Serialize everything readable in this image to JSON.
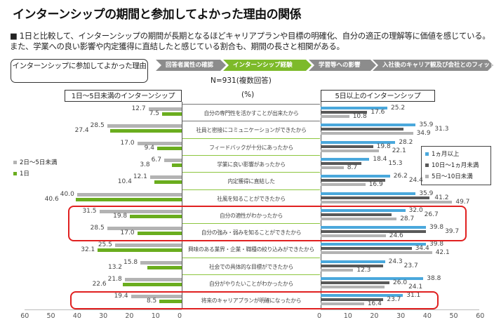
{
  "title": "インターンシップの期間と参加してよかった理由の関係",
  "description": "■ 1日と比較して、インターンシップの期間が長期となるほどキャリアプランや目標の明確化、自分の適正の理解等に価値を感じている。また、学業への良い影響や内定獲得に直結したと感じている割合も、期間の長さと相関がある。",
  "flow_box": "インターンシップに参加してよかった理由",
  "steps": [
    {
      "label": "回答者属性の確認",
      "color": "#8c8c8c"
    },
    {
      "label": "インターンシップ経験",
      "color": "#7dba2a"
    },
    {
      "label": "学習等への影響",
      "color": "#8c8c8c"
    },
    {
      "label": "入社後のキャリア観及び会社とのフィット",
      "color": "#8c8c8c"
    }
  ],
  "sample_note": "N=931(複数回答)",
  "unit": "(%)",
  "colors": {
    "gray_light": "#b3b3b3",
    "green": "#6aad1e",
    "blue": "#4aa8dc",
    "dark_gray": "#595959",
    "highlight": "#e02020",
    "row_line": "#8dc63f"
  },
  "chart_data": [
    {
      "type": "bar",
      "orientation": "horizontal-reversed",
      "title": "1日～5日未満のインターンシップ",
      "categories": [
        "自分の専門性を活かすことが出来たから",
        "社員と密接にコミュニケーションができたから",
        "フィードバックが十分にあったから",
        "学業に良い影響があったから",
        "内定獲得に直結した",
        "社風を知ることができたから",
        "自分の適性がわかったから",
        "自分の強み・弱みを知ることができたから",
        "興味のある業界・企業・職種の絞り込みができたから",
        "社会での具体的な目標ができたから",
        "自分がやりたいことがわかったから",
        "将来のキャリアプランが明確になったから"
      ],
      "series": [
        {
          "name": "2日～5日未満",
          "values": [
            12.7,
            28.5,
            17.0,
            6.7,
            12.1,
            40.0,
            31.5,
            28.5,
            25.5,
            15.8,
            21.8,
            19.4
          ]
        },
        {
          "name": "1日",
          "values": [
            7.5,
            27.4,
            9.4,
            3.8,
            10.4,
            40.6,
            19.8,
            17.0,
            32.1,
            13.2,
            22.6,
            8.5
          ]
        }
      ],
      "xlim": [
        60,
        0
      ],
      "ticks": [
        "60",
        "50",
        "40",
        "30",
        "20",
        "10",
        "0"
      ],
      "legend": "left"
    },
    {
      "type": "bar",
      "orientation": "horizontal",
      "title": "5日以上のインターンシップ",
      "series": [
        {
          "name": "1ヵ月以上",
          "values": [
            25.2,
            35.9,
            28.2,
            18.4,
            26.2,
            35.9,
            32.0,
            39.8,
            39.8,
            24.3,
            38.8,
            31.1
          ]
        },
        {
          "name": "10日～1ヵ月未満",
          "values": [
            17.6,
            31.3,
            19.8,
            15.3,
            24.4,
            41.2,
            26.7,
            39.7,
            34.4,
            23.7,
            26.0,
            23.7
          ]
        },
        {
          "name": "5日～10日未満",
          "values": [
            10.8,
            34.9,
            22.1,
            8.7,
            16.9,
            49.7,
            28.7,
            24.6,
            42.1,
            12.3,
            24.1,
            16.4
          ]
        }
      ],
      "xlim": [
        0,
        60
      ],
      "ticks": [
        "0",
        "10",
        "20",
        "30",
        "40",
        "50",
        "60"
      ],
      "legend": "right"
    }
  ]
}
